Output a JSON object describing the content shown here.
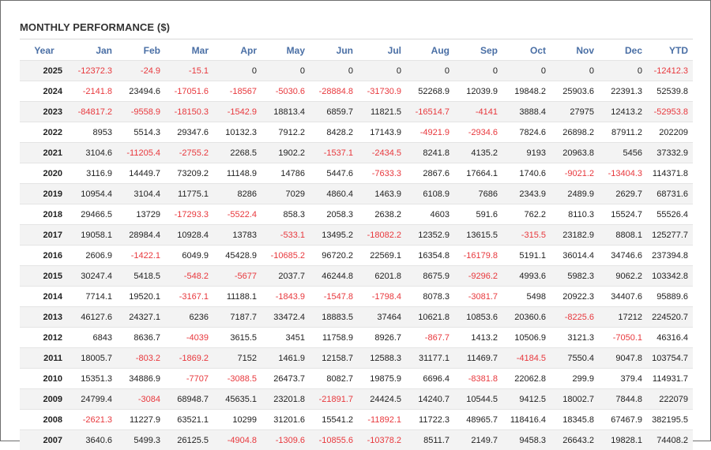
{
  "title": "MONTHLY PERFORMANCE ($)",
  "colors": {
    "negative": "#e8383d",
    "header": "#4a6fa5",
    "stripe": "#f3f3f3"
  },
  "columns": [
    "Year",
    "Jan",
    "Feb",
    "Mar",
    "Apr",
    "May",
    "Jun",
    "Jul",
    "Aug",
    "Sep",
    "Oct",
    "Nov",
    "Dec",
    "YTD"
  ],
  "rows": [
    [
      "2025",
      "-12372.3",
      "-24.9",
      "-15.1",
      "0",
      "0",
      "0",
      "0",
      "0",
      "0",
      "0",
      "0",
      "0",
      "-12412.3"
    ],
    [
      "2024",
      "-2141.8",
      "23494.6",
      "-17051.6",
      "-18567",
      "-5030.6",
      "-28884.8",
      "-31730.9",
      "52268.9",
      "12039.9",
      "19848.2",
      "25903.6",
      "22391.3",
      "52539.8"
    ],
    [
      "2023",
      "-84817.2",
      "-9558.9",
      "-18150.3",
      "-1542.9",
      "18813.4",
      "6859.7",
      "11821.5",
      "-16514.7",
      "-4141",
      "3888.4",
      "27975",
      "12413.2",
      "-52953.8"
    ],
    [
      "2022",
      "8953",
      "5514.3",
      "29347.6",
      "10132.3",
      "7912.2",
      "8428.2",
      "17143.9",
      "-4921.9",
      "-2934.6",
      "7824.6",
      "26898.2",
      "87911.2",
      "202209"
    ],
    [
      "2021",
      "3104.6",
      "-11205.4",
      "-2755.2",
      "2268.5",
      "1902.2",
      "-1537.1",
      "-2434.5",
      "8241.8",
      "4135.2",
      "9193",
      "20963.8",
      "5456",
      "37332.9"
    ],
    [
      "2020",
      "3116.9",
      "14449.7",
      "73209.2",
      "11148.9",
      "14786",
      "5447.6",
      "-7633.3",
      "2867.6",
      "17664.1",
      "1740.6",
      "-9021.2",
      "-13404.3",
      "114371.8"
    ],
    [
      "2019",
      "10954.4",
      "3104.4",
      "11775.1",
      "8286",
      "7029",
      "4860.4",
      "1463.9",
      "6108.9",
      "7686",
      "2343.9",
      "2489.9",
      "2629.7",
      "68731.6"
    ],
    [
      "2018",
      "29466.5",
      "13729",
      "-17293.3",
      "-5522.4",
      "858.3",
      "2058.3",
      "2638.2",
      "4603",
      "591.6",
      "762.2",
      "8110.3",
      "15524.7",
      "55526.4"
    ],
    [
      "2017",
      "19058.1",
      "28984.4",
      "10928.4",
      "13783",
      "-533.1",
      "13495.2",
      "-18082.2",
      "12352.9",
      "13615.5",
      "-315.5",
      "23182.9",
      "8808.1",
      "125277.7"
    ],
    [
      "2016",
      "2606.9",
      "-1422.1",
      "6049.9",
      "45428.9",
      "-10685.2",
      "96720.2",
      "22569.1",
      "16354.8",
      "-16179.8",
      "5191.1",
      "36014.4",
      "34746.6",
      "237394.8"
    ],
    [
      "2015",
      "30247.4",
      "5418.5",
      "-548.2",
      "-5677",
      "2037.7",
      "46244.8",
      "6201.8",
      "8675.9",
      "-9296.2",
      "4993.6",
      "5982.3",
      "9062.2",
      "103342.8"
    ],
    [
      "2014",
      "7714.1",
      "19520.1",
      "-3167.1",
      "11188.1",
      "-1843.9",
      "-1547.8",
      "-1798.4",
      "8078.3",
      "-3081.7",
      "5498",
      "20922.3",
      "34407.6",
      "95889.6"
    ],
    [
      "2013",
      "46127.6",
      "24327.1",
      "6236",
      "7187.7",
      "33472.4",
      "18883.5",
      "37464",
      "10621.8",
      "10853.6",
      "20360.6",
      "-8225.6",
      "17212",
      "224520.7"
    ],
    [
      "2012",
      "6843",
      "8636.7",
      "-4039",
      "3615.5",
      "3451",
      "11758.9",
      "8926.7",
      "-867.7",
      "1413.2",
      "10506.9",
      "3121.3",
      "-7050.1",
      "46316.4"
    ],
    [
      "2011",
      "18005.7",
      "-803.2",
      "-1869.2",
      "7152",
      "1461.9",
      "12158.7",
      "12588.3",
      "31177.1",
      "11469.7",
      "-4184.5",
      "7550.4",
      "9047.8",
      "103754.7"
    ],
    [
      "2010",
      "15351.3",
      "34886.9",
      "-7707",
      "-3088.5",
      "26473.7",
      "8082.7",
      "19875.9",
      "6696.4",
      "-8381.8",
      "22062.8",
      "299.9",
      "379.4",
      "114931.7"
    ],
    [
      "2009",
      "24799.4",
      "-3084",
      "68948.7",
      "45635.1",
      "23201.8",
      "-21891.7",
      "24424.5",
      "14240.7",
      "10544.5",
      "9412.5",
      "18002.7",
      "7844.8",
      "222079"
    ],
    [
      "2008",
      "-2621.3",
      "11227.9",
      "63521.1",
      "10299",
      "31201.6",
      "15541.2",
      "-11892.1",
      "11722.3",
      "48965.7",
      "118416.4",
      "18345.8",
      "67467.9",
      "382195.5"
    ],
    [
      "2007",
      "3640.6",
      "5499.3",
      "26125.5",
      "-4904.8",
      "-1309.6",
      "-10855.6",
      "-10378.2",
      "8511.7",
      "2149.7",
      "9458.3",
      "26643.2",
      "19828.1",
      "74408.2"
    ]
  ]
}
